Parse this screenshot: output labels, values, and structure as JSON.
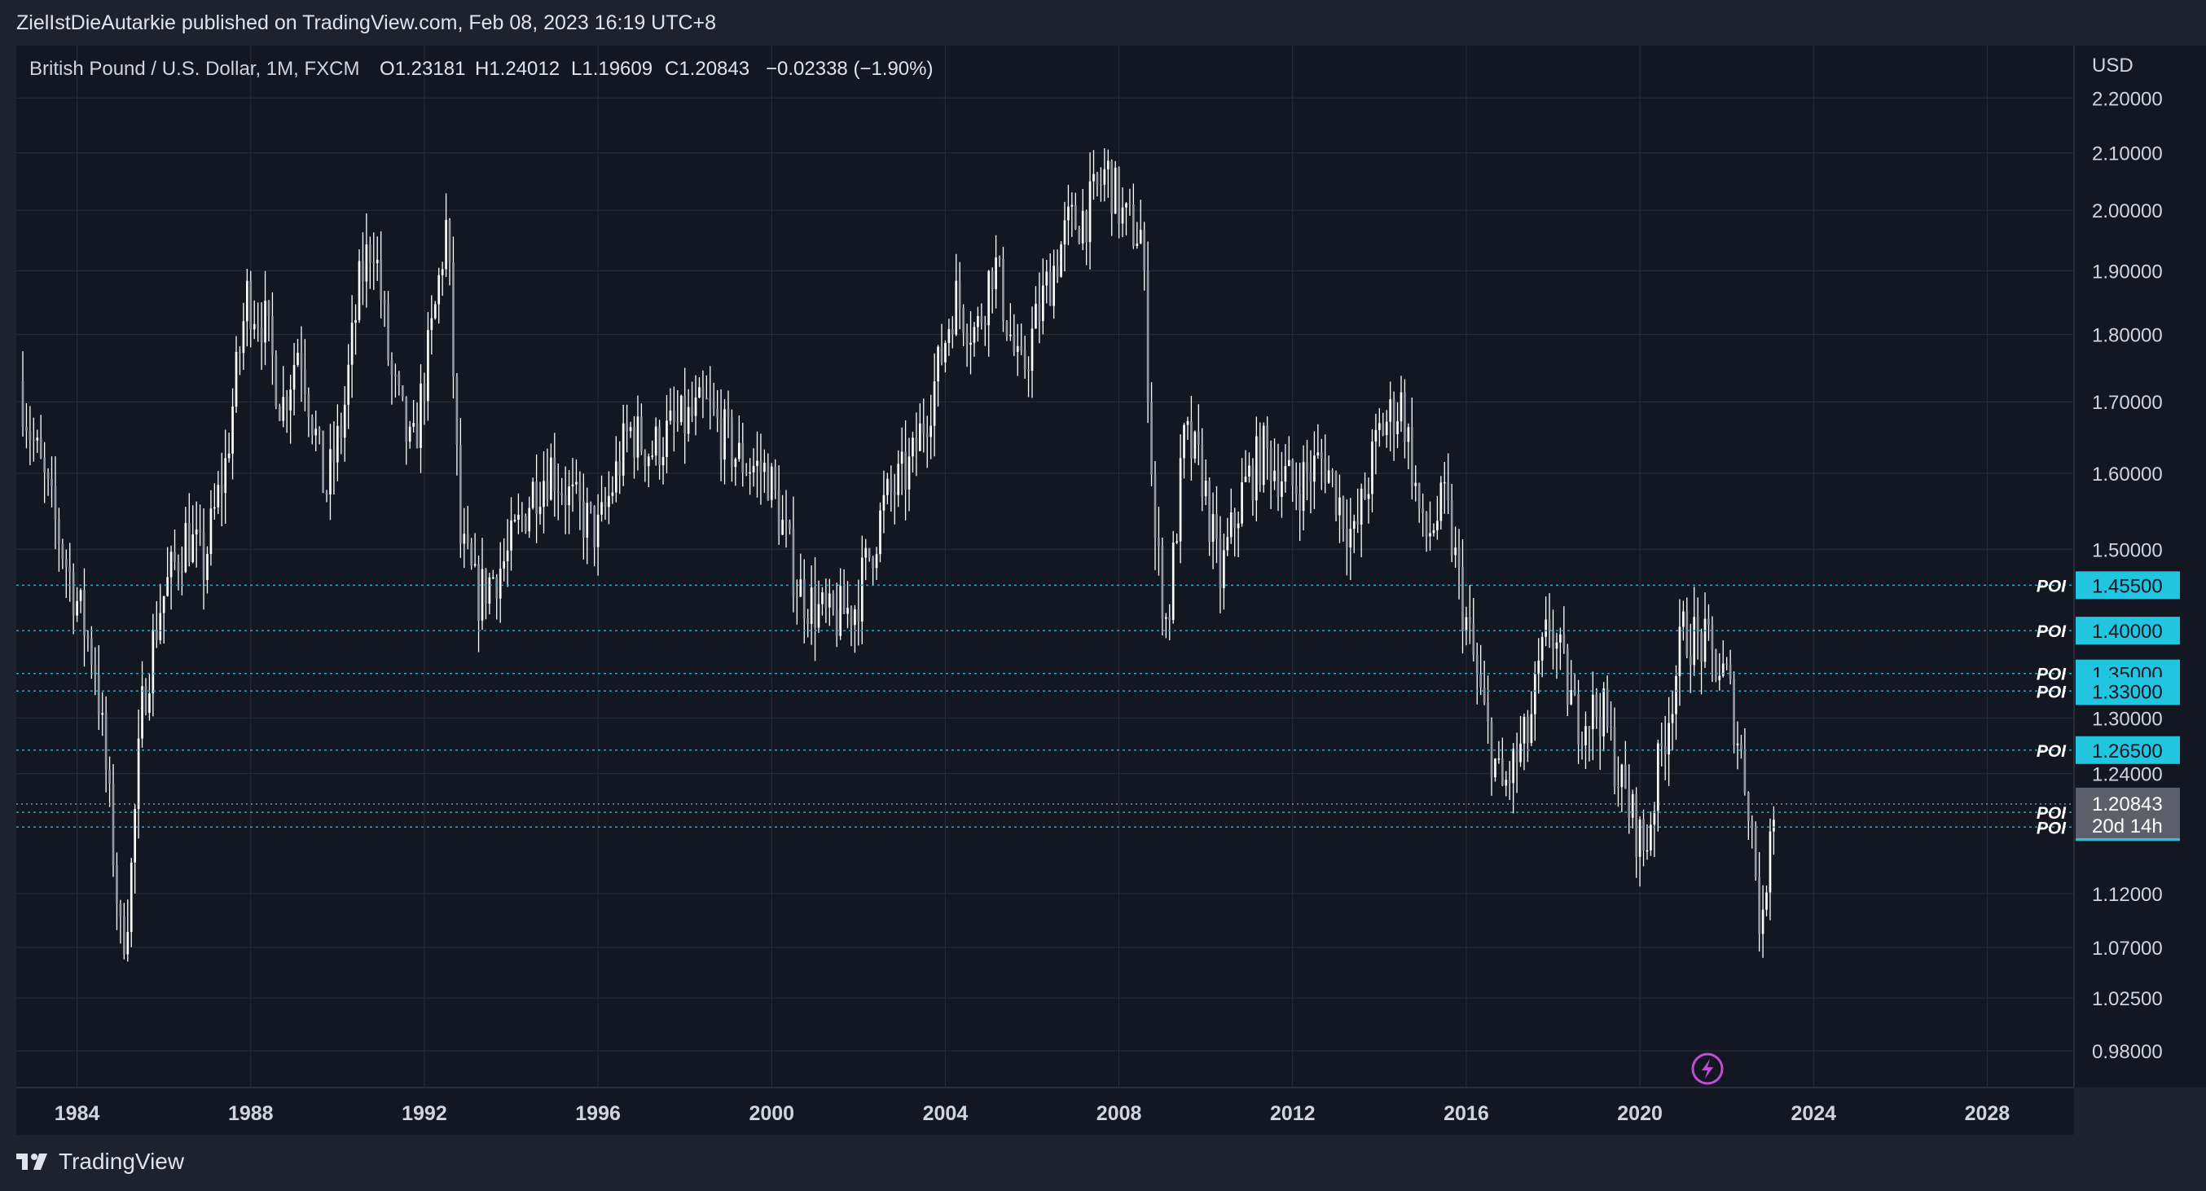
{
  "header": {
    "publisher_line": "ZielIstDieAutarkie published on TradingView.com, Feb 08, 2023 16:19 UTC+8"
  },
  "legend": {
    "symbol": "British Pound / U.S. Dollar, 1M, FXCM",
    "open": "O1.23181",
    "high": "H1.24012",
    "low": "L1.19609",
    "close": "C1.20843",
    "change": "−0.02338 (−1.90%)"
  },
  "footer": {
    "brand": "TradingView"
  },
  "colors": {
    "background": "#131722",
    "frame": "#1e222d",
    "grid": "#2a2e39",
    "candle": "#ffffff",
    "poi_label_bg": "#22c5e0",
    "poi_line": "#2ea6c2",
    "current_price_bg": "#5d606b",
    "lightning": "#c34bd6"
  },
  "icons": [
    "tradingview-logo-icon",
    "lightning-icon"
  ],
  "chart_data": {
    "type": "candlestick",
    "title": "British Pound / U.S. Dollar, 1M, FXCM",
    "currency_label": "USD",
    "y_scale": "log",
    "ylim": [
      0.95,
      2.3
    ],
    "xlim": [
      1982.6,
      2030.0
    ],
    "y_ticks": [
      "2.20000",
      "2.10000",
      "2.00000",
      "1.90000",
      "1.80000",
      "1.70000",
      "1.60000",
      "1.50000",
      "1.30000",
      "1.24000",
      "1.12000",
      "1.07000",
      "1.02500",
      "0.98000"
    ],
    "x_ticks": [
      "1984",
      "1988",
      "1992",
      "1996",
      "2000",
      "2004",
      "2008",
      "2012",
      "2016",
      "2020",
      "2024",
      "2028"
    ],
    "current_price": {
      "value": "1.20843",
      "countdown": "20d 14h"
    },
    "poi_levels": [
      {
        "label": "POI",
        "value": "1.45500"
      },
      {
        "label": "POI",
        "value": "1.40000"
      },
      {
        "label": "POI",
        "value": "1.35000"
      },
      {
        "label": "POI",
        "value": "1.33000"
      },
      {
        "label": "POI",
        "value": "1.26500"
      },
      {
        "label": "POI",
        "value": "1.20000"
      },
      {
        "label": "POI",
        "value": "1.18500"
      }
    ],
    "price_path": [
      [
        1982.75,
        1.73
      ],
      [
        1983.0,
        1.66
      ],
      [
        1983.5,
        1.55
      ],
      [
        1984.0,
        1.45
      ],
      [
        1984.5,
        1.36
      ],
      [
        1984.8,
        1.22
      ],
      [
        1985.1,
        1.07
      ],
      [
        1985.3,
        1.12
      ],
      [
        1985.6,
        1.32
      ],
      [
        1986.0,
        1.43
      ],
      [
        1986.6,
        1.52
      ],
      [
        1987.0,
        1.48
      ],
      [
        1987.5,
        1.61
      ],
      [
        1988.0,
        1.86
      ],
      [
        1988.4,
        1.82
      ],
      [
        1988.8,
        1.69
      ],
      [
        1989.2,
        1.79
      ],
      [
        1989.8,
        1.57
      ],
      [
        1990.2,
        1.67
      ],
      [
        1990.6,
        1.88
      ],
      [
        1990.9,
        1.96
      ],
      [
        1991.3,
        1.74
      ],
      [
        1991.8,
        1.62
      ],
      [
        1992.3,
        1.82
      ],
      [
        1992.6,
        1.98
      ],
      [
        1992.9,
        1.51
      ],
      [
        1993.3,
        1.44
      ],
      [
        1994.0,
        1.49
      ],
      [
        1994.6,
        1.58
      ],
      [
        1995.0,
        1.61
      ],
      [
        1995.6,
        1.55
      ],
      [
        1996.1,
        1.52
      ],
      [
        1996.8,
        1.66
      ],
      [
        1997.3,
        1.63
      ],
      [
        1997.8,
        1.66
      ],
      [
        1998.6,
        1.69
      ],
      [
        1999.3,
        1.62
      ],
      [
        2000.0,
        1.6
      ],
      [
        2000.7,
        1.45
      ],
      [
        2001.4,
        1.41
      ],
      [
        2002.0,
        1.43
      ],
      [
        2002.7,
        1.56
      ],
      [
        2003.3,
        1.61
      ],
      [
        2003.9,
        1.74
      ],
      [
        2004.3,
        1.86
      ],
      [
        2004.8,
        1.8
      ],
      [
        2005.2,
        1.92
      ],
      [
        2005.8,
        1.73
      ],
      [
        2006.4,
        1.87
      ],
      [
        2006.9,
        1.97
      ],
      [
        2007.4,
        2.0
      ],
      [
        2007.8,
        2.07
      ],
      [
        2008.2,
        1.98
      ],
      [
        2008.6,
        1.96
      ],
      [
        2008.9,
        1.52
      ],
      [
        2009.2,
        1.4
      ],
      [
        2009.6,
        1.65
      ],
      [
        2010.0,
        1.6
      ],
      [
        2010.4,
        1.46
      ],
      [
        2010.9,
        1.57
      ],
      [
        2011.4,
        1.63
      ],
      [
        2012.1,
        1.58
      ],
      [
        2012.8,
        1.62
      ],
      [
        2013.5,
        1.51
      ],
      [
        2014.1,
        1.66
      ],
      [
        2014.6,
        1.7
      ],
      [
        2015.1,
        1.51
      ],
      [
        2015.6,
        1.56
      ],
      [
        2016.0,
        1.43
      ],
      [
        2016.5,
        1.3
      ],
      [
        2016.9,
        1.22
      ],
      [
        2017.5,
        1.28
      ],
      [
        2018.0,
        1.41
      ],
      [
        2018.6,
        1.3
      ],
      [
        2019.2,
        1.31
      ],
      [
        2019.7,
        1.22
      ],
      [
        2020.2,
        1.16
      ],
      [
        2020.6,
        1.27
      ],
      [
        2021.1,
        1.4
      ],
      [
        2021.6,
        1.38
      ],
      [
        2022.1,
        1.34
      ],
      [
        2022.6,
        1.21
      ],
      [
        2022.9,
        1.07
      ],
      [
        2023.1,
        1.21
      ]
    ],
    "markers": [
      {
        "type": "lightning",
        "x": 2022.8
      }
    ]
  }
}
